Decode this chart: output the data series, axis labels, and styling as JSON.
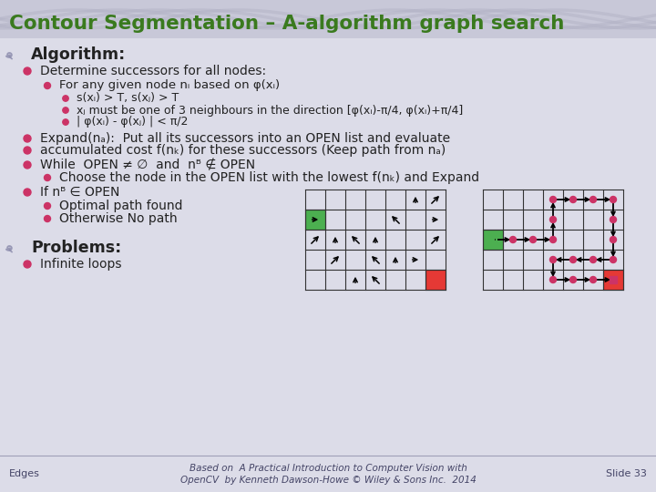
{
  "title": "Contour Segmentation – A-algorithm graph search",
  "title_color": "#3a7a1e",
  "bg_color": "#dcdce8",
  "header_color": "#c8c8d8",
  "bullet_color": "#cc3366",
  "text_color": "#222222",
  "footer_text1": "Based on  A Practical Introduction to Computer Vision with",
  "footer_text2": "OpenCV  by Kenneth Dawson-Howe © Wiley & Sons Inc.  2014",
  "footer_left": "Edges",
  "footer_right": "Slide 33"
}
